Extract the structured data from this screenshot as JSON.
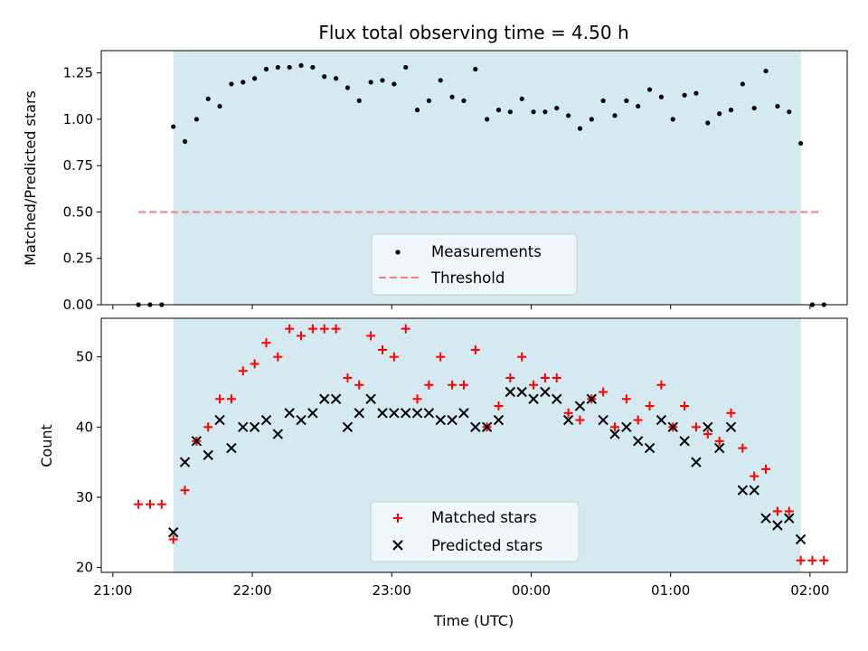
{
  "chart_data": {
    "title": "Flux total observing time = 4.50 h",
    "xlabel": "Time (UTC)",
    "x_ticks": [
      "21:00",
      "22:00",
      "23:00",
      "00:00",
      "01:00",
      "02:00"
    ],
    "x_tick_minutes": [
      0,
      60,
      120,
      180,
      240,
      300
    ],
    "observing_window": [
      "21:26",
      "01:56"
    ],
    "colors": {
      "window": "#d4eaf0",
      "matched": "#ff0000",
      "predicted": "#000000",
      "threshold": "#f08080",
      "measurements": "#000000"
    },
    "panels": [
      {
        "type": "scatter",
        "ylabel": "Matched/Predicted stars",
        "ylim": [
          0,
          1.37
        ],
        "y_ticks": [
          0.0,
          0.25,
          0.5,
          0.75,
          1.0,
          1.25
        ],
        "y_tick_labels": [
          "0.00",
          "0.25",
          "0.50",
          "0.75",
          "1.00",
          "1.25"
        ],
        "legend": {
          "position": "bottom-center",
          "entries": [
            "Measurements",
            "Threshold"
          ]
        },
        "threshold": {
          "y": 0.5,
          "x_range": [
            "21:11",
            "02:04"
          ]
        },
        "series": [
          {
            "name": "Measurements",
            "x": [
              "21:11",
              "21:16",
              "21:21",
              "21:26",
              "21:31",
              "21:36",
              "21:41",
              "21:46",
              "21:51",
              "21:56",
              "22:01",
              "22:06",
              "22:11",
              "22:16",
              "22:21",
              "22:26",
              "22:31",
              "22:36",
              "22:41",
              "22:46",
              "22:51",
              "22:56",
              "23:01",
              "23:06",
              "23:11",
              "23:16",
              "23:21",
              "23:26",
              "23:31",
              "23:36",
              "23:41",
              "23:46",
              "23:51",
              "23:56",
              "00:01",
              "00:06",
              "00:11",
              "00:16",
              "00:21",
              "00:26",
              "00:31",
              "00:36",
              "00:41",
              "00:46",
              "00:51",
              "00:56",
              "01:01",
              "01:06",
              "01:11",
              "01:16",
              "01:21",
              "01:26",
              "01:31",
              "01:36",
              "01:41",
              "01:46",
              "01:51",
              "01:56",
              "02:01",
              "02:06"
            ],
            "y": [
              0,
              0,
              0,
              0.96,
              0.88,
              1.0,
              1.11,
              1.07,
              1.19,
              1.2,
              1.22,
              1.27,
              1.28,
              1.28,
              1.29,
              1.28,
              1.23,
              1.22,
              1.17,
              1.1,
              1.2,
              1.21,
              1.19,
              1.28,
              1.05,
              1.1,
              1.21,
              1.12,
              1.1,
              1.27,
              1.0,
              1.05,
              1.04,
              1.11,
              1.04,
              1.04,
              1.06,
              1.02,
              0.95,
              1.0,
              1.1,
              1.02,
              1.1,
              1.07,
              1.16,
              1.12,
              1.0,
              1.13,
              1.14,
              0.98,
              1.03,
              1.05,
              1.19,
              1.06,
              1.26,
              1.07,
              1.04,
              0.87,
              0,
              0
            ]
          }
        ]
      },
      {
        "type": "scatter",
        "ylabel": "Count",
        "ylim": [
          19.3,
          55.5
        ],
        "y_ticks": [
          20,
          30,
          40,
          50
        ],
        "y_tick_labels": [
          "20",
          "30",
          "40",
          "50"
        ],
        "legend": {
          "position": "bottom-center",
          "entries": [
            "Matched stars",
            "Predicted stars"
          ]
        },
        "series": [
          {
            "name": "Matched stars",
            "marker": "plus",
            "x": [
              "21:11",
              "21:16",
              "21:21",
              "21:26",
              "21:31",
              "21:36",
              "21:41",
              "21:46",
              "21:51",
              "21:56",
              "22:01",
              "22:06",
              "22:11",
              "22:16",
              "22:21",
              "22:26",
              "22:31",
              "22:36",
              "22:41",
              "22:46",
              "22:51",
              "22:56",
              "23:01",
              "23:06",
              "23:11",
              "23:16",
              "23:21",
              "23:26",
              "23:31",
              "23:36",
              "23:41",
              "23:46",
              "23:51",
              "23:56",
              "00:01",
              "00:06",
              "00:11",
              "00:16",
              "00:21",
              "00:26",
              "00:31",
              "00:36",
              "00:41",
              "00:46",
              "00:51",
              "00:56",
              "01:01",
              "01:06",
              "01:11",
              "01:16",
              "01:21",
              "01:26",
              "01:31",
              "01:36",
              "01:41",
              "01:46",
              "01:51",
              "01:56",
              "02:01",
              "02:06"
            ],
            "y": [
              29,
              29,
              29,
              24,
              31,
              38,
              40,
              44,
              44,
              48,
              49,
              52,
              50,
              54,
              53,
              54,
              54,
              54,
              47,
              46,
              53,
              51,
              50,
              54,
              44,
              46,
              50,
              46,
              46,
              51,
              40,
              43,
              47,
              50,
              46,
              47,
              47,
              42,
              41,
              44,
              45,
              40,
              44,
              41,
              43,
              46,
              40,
              43,
              40,
              39,
              38,
              42,
              37,
              33,
              34,
              28,
              28,
              21,
              21,
              21
            ]
          },
          {
            "name": "Predicted stars",
            "marker": "x",
            "x": [
              "21:26",
              "21:31",
              "21:36",
              "21:41",
              "21:46",
              "21:51",
              "21:56",
              "22:01",
              "22:06",
              "22:11",
              "22:16",
              "22:21",
              "22:26",
              "22:31",
              "22:36",
              "22:41",
              "22:46",
              "22:51",
              "22:56",
              "23:01",
              "23:06",
              "23:11",
              "23:16",
              "23:21",
              "23:26",
              "23:31",
              "23:36",
              "23:41",
              "23:46",
              "23:51",
              "23:56",
              "00:01",
              "00:06",
              "00:11",
              "00:16",
              "00:21",
              "00:26",
              "00:31",
              "00:36",
              "00:41",
              "00:46",
              "00:51",
              "00:56",
              "01:01",
              "01:06",
              "01:11",
              "01:16",
              "01:21",
              "01:26",
              "01:31",
              "01:36",
              "01:41",
              "01:46",
              "01:51",
              "01:56"
            ],
            "y": [
              25,
              35,
              38,
              36,
              41,
              37,
              40,
              40,
              41,
              39,
              42,
              41,
              42,
              44,
              44,
              40,
              42,
              44,
              42,
              42,
              42,
              42,
              42,
              41,
              41,
              42,
              40,
              40,
              41,
              45,
              45,
              44,
              45,
              44,
              41,
              43,
              44,
              41,
              39,
              40,
              38,
              37,
              41,
              40,
              38,
              35,
              40,
              37,
              40,
              31,
              31,
              27,
              26,
              27,
              24
            ]
          }
        ]
      }
    ]
  }
}
